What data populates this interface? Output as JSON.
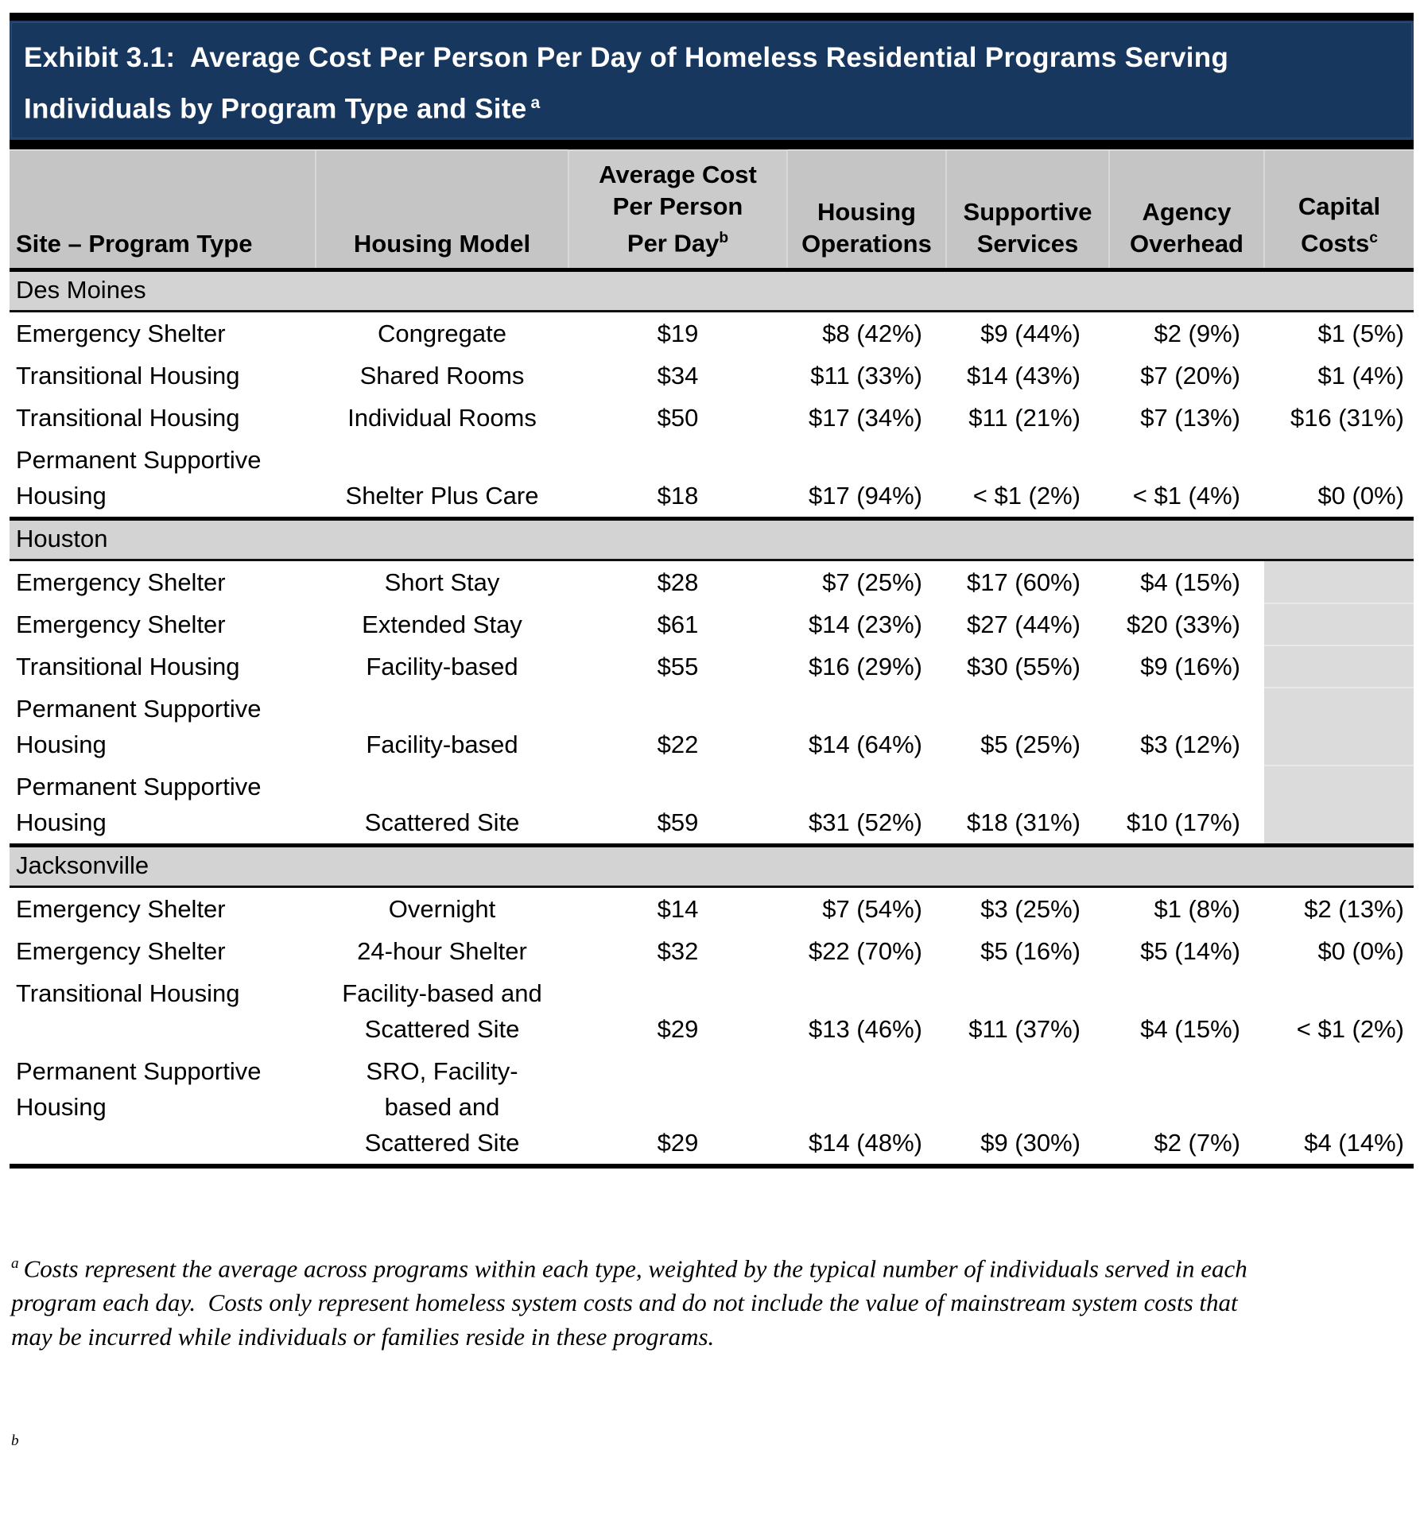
{
  "title": {
    "line1": "Exhibit 3.1:  Average Cost Per Person Per Day of Homeless Residential Programs Serving",
    "line2": "Individuals by Program Type and Site",
    "sup": "a",
    "bar_color": "#17375E",
    "text_color": "#ffffff"
  },
  "table": {
    "header_bg": "#C5C5C5",
    "section_bg": "#D3D3D3",
    "shaded_cell_bg": "#DBDBDB",
    "columns": [
      {
        "id": "site-program-type",
        "lines": [
          "Site – Program Type"
        ]
      },
      {
        "id": "housing-model",
        "lines": [
          "Housing Model"
        ]
      },
      {
        "id": "average-cost-per-person-per-day",
        "lines": [
          "Average Cost",
          "Per Person",
          "Per Day"
        ],
        "sup": "b"
      },
      {
        "id": "housing-operations",
        "lines": [
          "Housing",
          "Operations"
        ]
      },
      {
        "id": "supportive-services",
        "lines": [
          "Supportive",
          "Services"
        ]
      },
      {
        "id": "agency-overhead",
        "lines": [
          "Agency",
          "Overhead"
        ]
      },
      {
        "id": "capital-costs",
        "lines": [
          "Capital",
          "Costs"
        ],
        "sup": "c"
      }
    ],
    "sections": [
      {
        "label": "Des Moines",
        "rows": [
          {
            "cells": [
              [
                "Emergency Shelter"
              ],
              [
                "Congregate"
              ],
              [
                "$19"
              ],
              [
                "$8 (42%)"
              ],
              [
                "$9 (44%)"
              ],
              [
                "$2 (9%)"
              ],
              [
                "$1 (5%)"
              ]
            ]
          },
          {
            "cells": [
              [
                "Transitional Housing"
              ],
              [
                "Shared Rooms"
              ],
              [
                "$34"
              ],
              [
                "$11 (33%)"
              ],
              [
                "$14 (43%)"
              ],
              [
                "$7 (20%)"
              ],
              [
                "$1 (4%)"
              ]
            ]
          },
          {
            "cells": [
              [
                "Transitional Housing"
              ],
              [
                "Individual Rooms"
              ],
              [
                "$50"
              ],
              [
                "$17 (34%)"
              ],
              [
                "$11 (21%)"
              ],
              [
                "$7 (13%)"
              ],
              [
                "$16 (31%)"
              ]
            ]
          },
          {
            "cells": [
              [
                "Permanent Supportive",
                "Housing"
              ],
              [
                "Shelter Plus Care"
              ],
              [
                "$18"
              ],
              [
                "$17 (94%)"
              ],
              [
                "< $1 (2%)"
              ],
              [
                "< $1 (4%)"
              ],
              [
                "$0 (0%)"
              ]
            ]
          }
        ]
      },
      {
        "label": "Houston",
        "rows": [
          {
            "cells": [
              [
                "Emergency Shelter"
              ],
              [
                "Short Stay"
              ],
              [
                "$28"
              ],
              [
                "$7 (25%)"
              ],
              [
                "$17 (60%)"
              ],
              [
                "$4 (15%)"
              ],
              null
            ]
          },
          {
            "cells": [
              [
                "Emergency Shelter"
              ],
              [
                "Extended Stay"
              ],
              [
                "$61"
              ],
              [
                "$14 (23%)"
              ],
              [
                "$27 (44%)"
              ],
              [
                "$20 (33%)"
              ],
              null
            ]
          },
          {
            "cells": [
              [
                "Transitional Housing"
              ],
              [
                "Facility-based"
              ],
              [
                "$55"
              ],
              [
                "$16 (29%)"
              ],
              [
                "$30 (55%)"
              ],
              [
                "$9 (16%)"
              ],
              null
            ]
          },
          {
            "cells": [
              [
                "Permanent Supportive",
                "Housing"
              ],
              [
                "Facility-based"
              ],
              [
                "$22"
              ],
              [
                "$14 (64%)"
              ],
              [
                "$5 (25%)"
              ],
              [
                "$3 (12%)"
              ],
              null
            ]
          },
          {
            "cells": [
              [
                "Permanent Supportive",
                "Housing"
              ],
              [
                "Scattered Site"
              ],
              [
                "$59"
              ],
              [
                "$31 (52%)"
              ],
              [
                "$18 (31%)"
              ],
              [
                "$10 (17%)"
              ],
              null
            ]
          }
        ]
      },
      {
        "label": "Jacksonville",
        "rows": [
          {
            "cells": [
              [
                "Emergency Shelter"
              ],
              [
                "Overnight"
              ],
              [
                "$14"
              ],
              [
                "$7 (54%)"
              ],
              [
                "$3 (25%)"
              ],
              [
                "$1 (8%)"
              ],
              [
                "$2 (13%)"
              ]
            ]
          },
          {
            "cells": [
              [
                "Emergency Shelter"
              ],
              [
                "24-hour Shelter"
              ],
              [
                "$32"
              ],
              [
                "$22 (70%)"
              ],
              [
                "$5 (16%)"
              ],
              [
                "$5 (14%)"
              ],
              [
                "$0 (0%)"
              ]
            ]
          },
          {
            "cells": [
              [
                "Transitional Housing"
              ],
              [
                "Facility-based and",
                "Scattered Site"
              ],
              [
                "$29"
              ],
              [
                "$13 (46%)"
              ],
              [
                "$11 (37%)"
              ],
              [
                "$4 (15%)"
              ],
              [
                "< $1 (2%)"
              ]
            ],
            "col1_top": true
          },
          {
            "cells": [
              [
                "Permanent Supportive",
                "Housing"
              ],
              [
                "SRO, Facility-",
                "based and",
                "Scattered Site"
              ],
              [
                "$29"
              ],
              [
                "$14 (48%)"
              ],
              [
                "$9 (30%)"
              ],
              [
                "$2 (7%)"
              ],
              [
                "$4 (14%)"
              ]
            ],
            "col1_top": true
          }
        ]
      }
    ]
  },
  "footnotes": {
    "a": {
      "sup": "a",
      "lines": [
        "Costs represent the average across programs within each type, weighted by the typical number of individuals served in each",
        "program each day.  Costs only represent homeless system costs and do not include the value of mainstream system costs that",
        "may be incurred while individuals or families reside in these programs."
      ]
    },
    "b": {
      "sup": "b",
      "lines": []
    }
  }
}
